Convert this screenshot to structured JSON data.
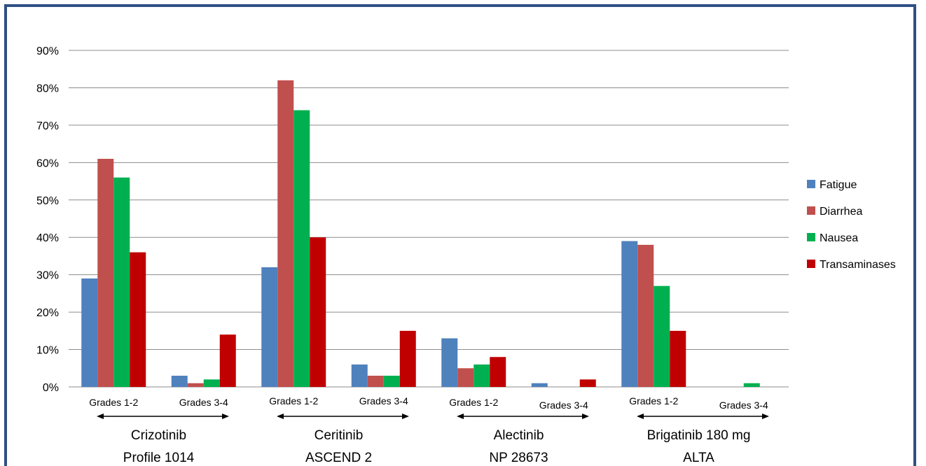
{
  "chart_data": {
    "type": "bar",
    "title": "",
    "xlabel": "",
    "ylabel": "",
    "ylim": [
      0,
      90
    ],
    "y_tick_labels": [
      "0%",
      "10%",
      "20%",
      "30%",
      "40%",
      "50%",
      "60%",
      "70%",
      "80%",
      "90%"
    ],
    "grid": true,
    "legend_position": "right",
    "categories": [
      "Grades 1-2",
      "Grades 3-4",
      "Grades 1-2",
      "Grades 3-4",
      "Grades 1-2",
      "Grades 3-4",
      "Grades 1-2",
      "Grades 3-4"
    ],
    "groups": [
      {
        "line1": "Crizotinib",
        "line2": "Profile 1014"
      },
      {
        "line1": "Ceritinib",
        "line2": "ASCEND 2"
      },
      {
        "line1": "Alectinib",
        "line2": "NP 28673"
      },
      {
        "line1": "Brigatinib 180 mg",
        "line2": "ALTA"
      }
    ],
    "series": [
      {
        "name": "Fatigue",
        "color": "#4f81bd",
        "values": [
          29,
          3,
          32,
          6,
          13,
          1,
          39,
          0
        ]
      },
      {
        "name": "Diarrhea",
        "color": "#c0504d",
        "values": [
          61,
          1,
          82,
          3,
          5,
          0,
          38,
          0
        ]
      },
      {
        "name": "Nausea",
        "color": "#00b050",
        "values": [
          56,
          2,
          74,
          3,
          6,
          0,
          27,
          1
        ]
      },
      {
        "name": "Transaminases",
        "color": "#c00000",
        "values": [
          36,
          14,
          40,
          15,
          8,
          2,
          15,
          0
        ]
      }
    ]
  }
}
